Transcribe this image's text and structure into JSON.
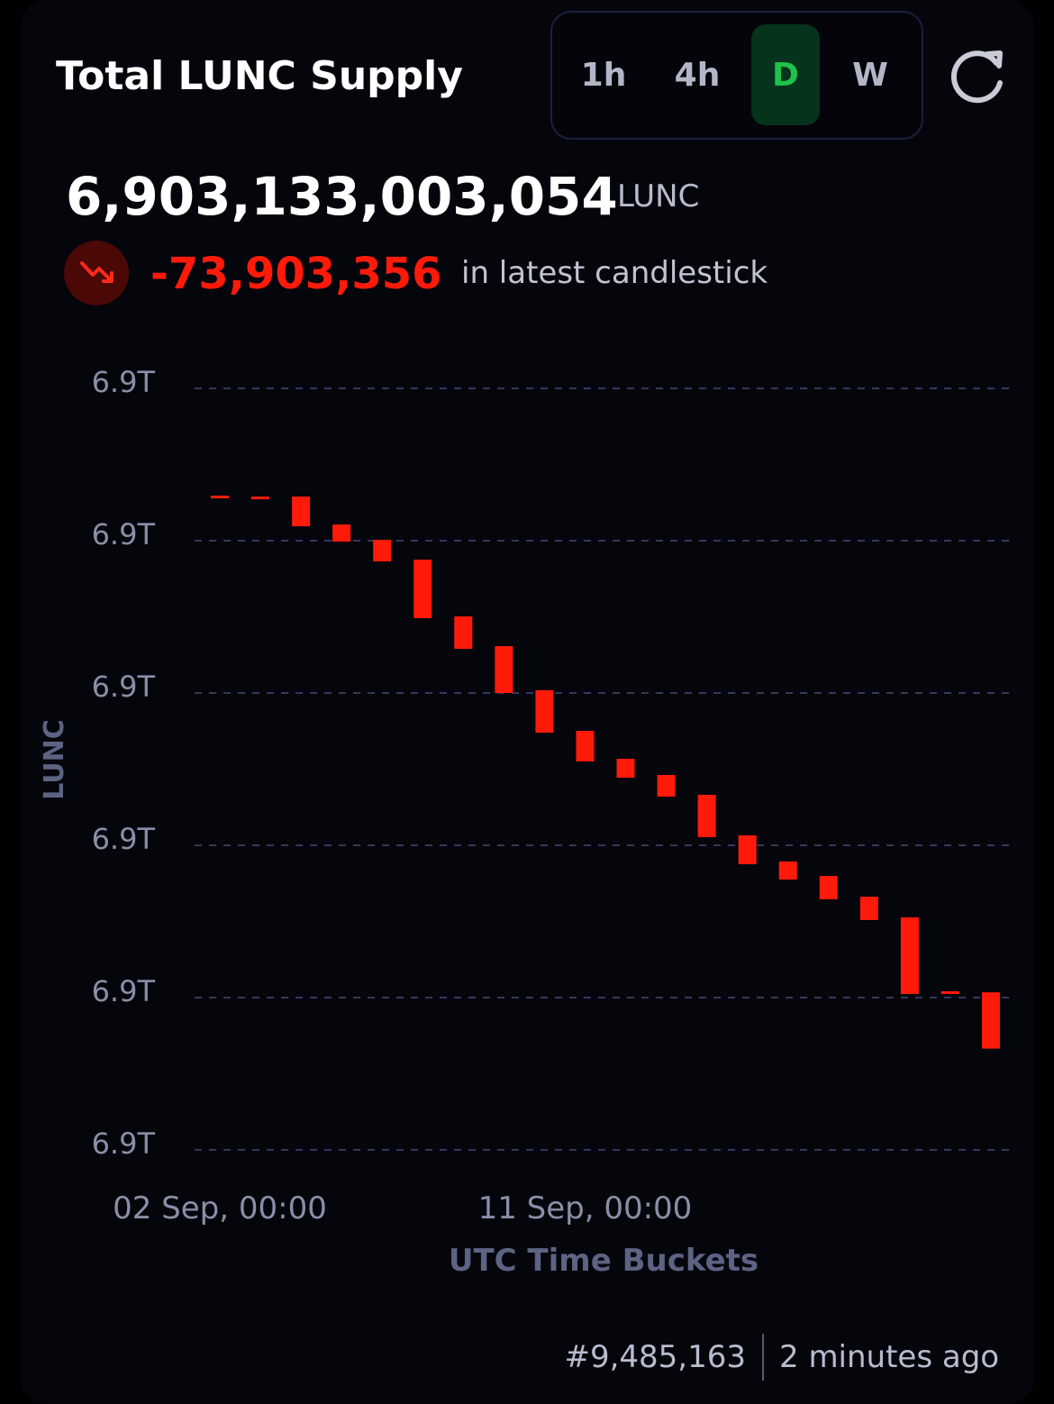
{
  "header": {
    "tabs": [
      "1h",
      "4h",
      "D",
      "W"
    ],
    "active_tab": 2
  },
  "summary": {
    "supply": "6,903,133,003,054",
    "unit": "LUNC",
    "change": "-73,903,356",
    "change_note": "in latest candlestick"
  },
  "chart_data": {
    "type": "candlestick",
    "title": "Total LUNC Supply",
    "x_label": "UTC Time Buckets",
    "y_label": "LUNC",
    "categories": [
      "02 Sep, 00:00",
      null,
      null,
      null,
      null,
      null,
      null,
      null,
      null,
      "11 Sep, 00:00",
      null,
      null,
      null,
      null,
      null,
      null,
      null,
      null,
      null,
      null
    ],
    "open": [
      6903859200000,
      6903858000000,
      6903858000000,
      6903821300000,
      6903801200000,
      6903775100000,
      6903700600000,
      6903661500000,
      6903603600000,
      6903550300000,
      6903513600000,
      6903492300000,
      6903466300000,
      6903413000000,
      6903378700000,
      6903359800000,
      6903332500000,
      6903305300000,
      6903208300000,
      6903206906410
    ],
    "close": [
      6903855600000,
      6903854400000,
      6903818900000,
      6903798800000,
      6903772800000,
      6903698200000,
      6903658000000,
      6903600000000,
      6903547900000,
      6903510100000,
      6903488800000,
      6903463900000,
      6903410700000,
      6903375100000,
      6903355000000,
      6903329000000,
      6903301800000,
      6903204700000,
      6903204700000,
      6903133003054
    ],
    "up_color": "#1fc24a",
    "down_color": "#ff1a0a",
    "ylim": [
      6903000000000,
      6904000000000
    ],
    "yticks": [
      {
        "value": 6904000000000,
        "label": "6.9T"
      },
      {
        "value": 6903800000000,
        "label": "6.9T"
      },
      {
        "value": 6903600000000,
        "label": "6.9T"
      },
      {
        "value": 6903400000000,
        "label": "6.9T"
      },
      {
        "value": 6903200000000,
        "label": "6.9T"
      },
      {
        "value": 6903000000000,
        "label": "6.9T"
      }
    ],
    "grid": true
  },
  "footer": {
    "block": "#9,485,163",
    "age": "2 minutes ago"
  }
}
